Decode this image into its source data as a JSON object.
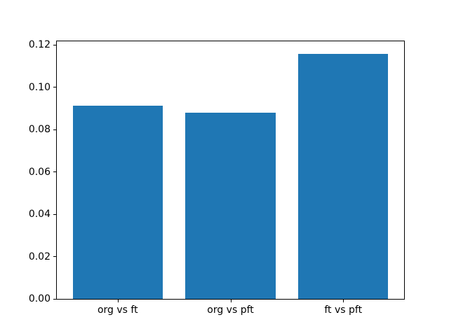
{
  "chart_data": {
    "type": "bar",
    "categories": [
      "org vs ft",
      "org vs pft",
      "ft vs pft"
    ],
    "values": [
      0.0915,
      0.088,
      0.116
    ],
    "title": "",
    "xlabel": "",
    "ylabel": "",
    "ylim": [
      0,
      0.1218
    ],
    "xlim": [
      -0.54,
      2.54
    ],
    "yticks": [
      0.0,
      0.02,
      0.04,
      0.06,
      0.08,
      0.1,
      0.12
    ],
    "ytick_labels": [
      "0.00",
      "0.02",
      "0.04",
      "0.06",
      "0.08",
      "0.10",
      "0.12"
    ],
    "bar_width": 0.8,
    "bar_color": "#1f77b4",
    "grid": false,
    "legend_position": "none"
  },
  "colors": {
    "background": "#ffffff",
    "spine": "#000000",
    "text": "#000000",
    "accent": "#1f77b4"
  }
}
